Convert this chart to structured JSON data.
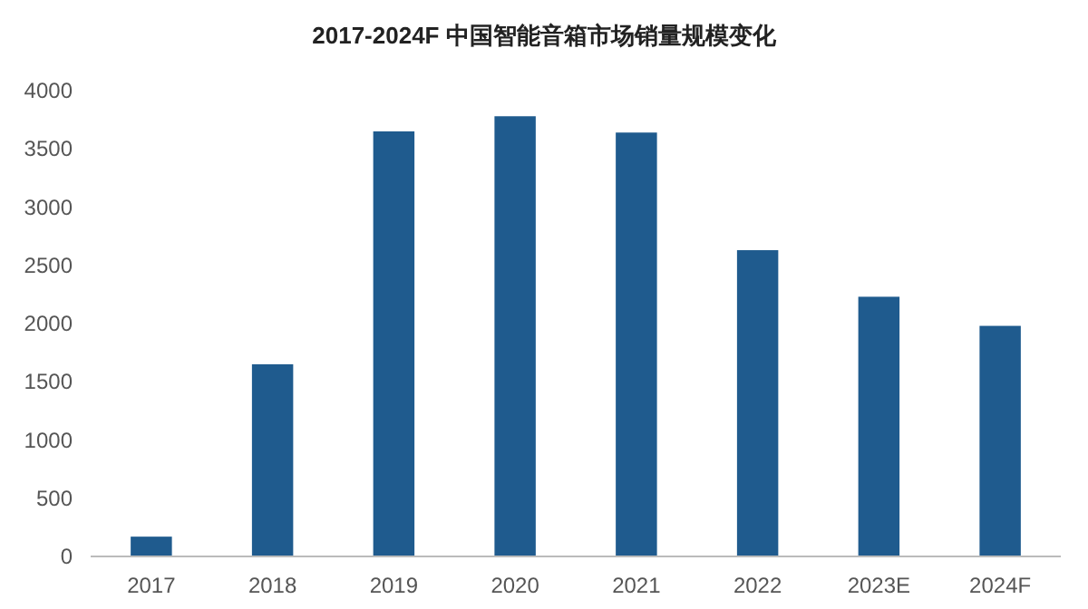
{
  "chart_data": {
    "type": "bar",
    "title": "2017-2024F 中国智能音箱市场销量规模变化",
    "categories": [
      "2017",
      "2018",
      "2019",
      "2020",
      "2021",
      "2022",
      "2023E",
      "2024F"
    ],
    "values": [
      170,
      1650,
      3650,
      3780,
      3640,
      2630,
      2230,
      1980
    ],
    "color": "#1f5b8e",
    "ylim": [
      0,
      4000
    ],
    "yticks": [
      0,
      500,
      1000,
      1500,
      2000,
      2500,
      3000,
      3500,
      4000
    ],
    "grid": false
  }
}
